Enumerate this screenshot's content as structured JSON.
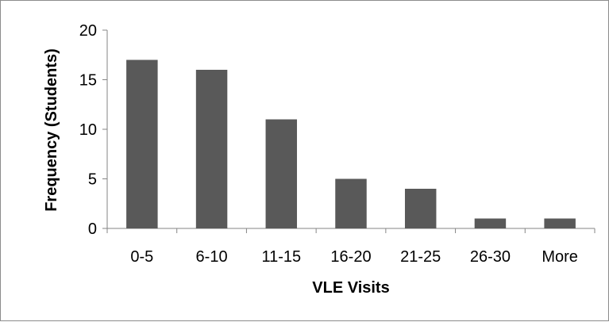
{
  "chart_data": {
    "type": "bar",
    "title": "",
    "xlabel": "VLE Visits",
    "ylabel": "Frequency (Students)",
    "categories": [
      "0-5",
      "6-10",
      "11-15",
      "16-20",
      "21-25",
      "26-30",
      "More"
    ],
    "values": [
      17,
      16,
      11,
      5,
      4,
      1,
      1
    ],
    "ylim": [
      0,
      20
    ],
    "yticks": [
      0,
      5,
      10,
      15,
      20
    ],
    "grid": false,
    "legend": "none",
    "bar_color": "#595959"
  }
}
